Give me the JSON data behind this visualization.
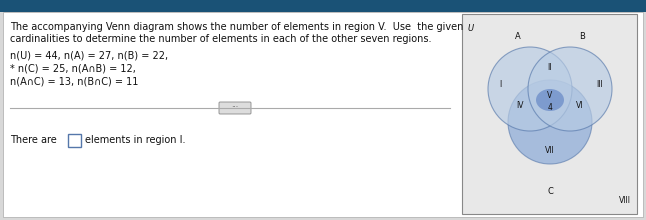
{
  "title_line1": "The accompanying Venn diagram shows the number of elements in region V.  Use  the given",
  "title_line2": "cardinalities to determine the number of elements in each of the other seven regions.",
  "data_line1": "n(U) = 44, n(A) = 27, n(B) = 22,",
  "data_line2": "* n(C) = 25, n(A∩B) = 12,",
  "data_line3": "n(A∩C) = 13, n(B∩C) = 11",
  "bottom_text1": "There are",
  "bottom_text2": "elements in region I.",
  "header_color": "#1a5276",
  "bg_color": "#d8d8d8",
  "panel_color": "#f0f0f0",
  "white_color": "#ffffff",
  "text_color": "#111111",
  "venn_box_color": "#e8e8e8",
  "circle_stroke": "#5577aa",
  "circle_A_fill": "#b8cce4",
  "circle_B_fill": "#b8cce4",
  "circle_C_fill": "#7b9fd4",
  "overlap_AB_fill": "#c5d5e8",
  "center_fill": "#6b8cc8",
  "font_size_main": 7.0,
  "font_size_venn": 6.0,
  "divider_color": "#aaaaaa",
  "divider_btn_color": "#dddddd",
  "checkbox_color": "#5577aa"
}
